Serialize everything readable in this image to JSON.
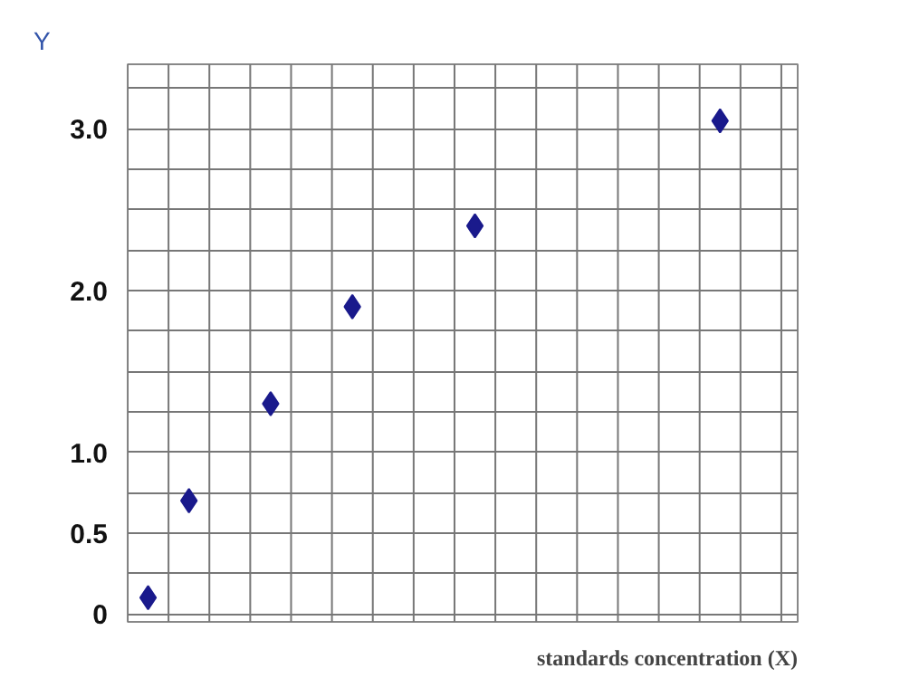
{
  "chart_data": {
    "type": "scatter",
    "xlabel": "standards concentration (X)",
    "ylabel": "Y",
    "categories": [
      null,
      null,
      null,
      null,
      null,
      null,
      null,
      null,
      null,
      null,
      null,
      null,
      null,
      null,
      null,
      null
    ],
    "series": [
      {
        "color": "#1a1a8c",
        "values": [
          0.1,
          0.7,
          null,
          1.3,
          null,
          1.9,
          null,
          null,
          2.4,
          null,
          null,
          null,
          null,
          null,
          3.05,
          null
        ]
      }
    ],
    "marker": "diamond",
    "grid": true,
    "tick_labels": "y",
    "ylim": [
      -0.05,
      3.4
    ],
    "yticks": [
      0,
      0.5,
      {
        "value": 1.0,
        "label": "1.0"
      },
      {
        "value": 2.0,
        "label": "2.0"
      },
      {
        "value": 3.0,
        "label": "3.0"
      }
    ]
  }
}
